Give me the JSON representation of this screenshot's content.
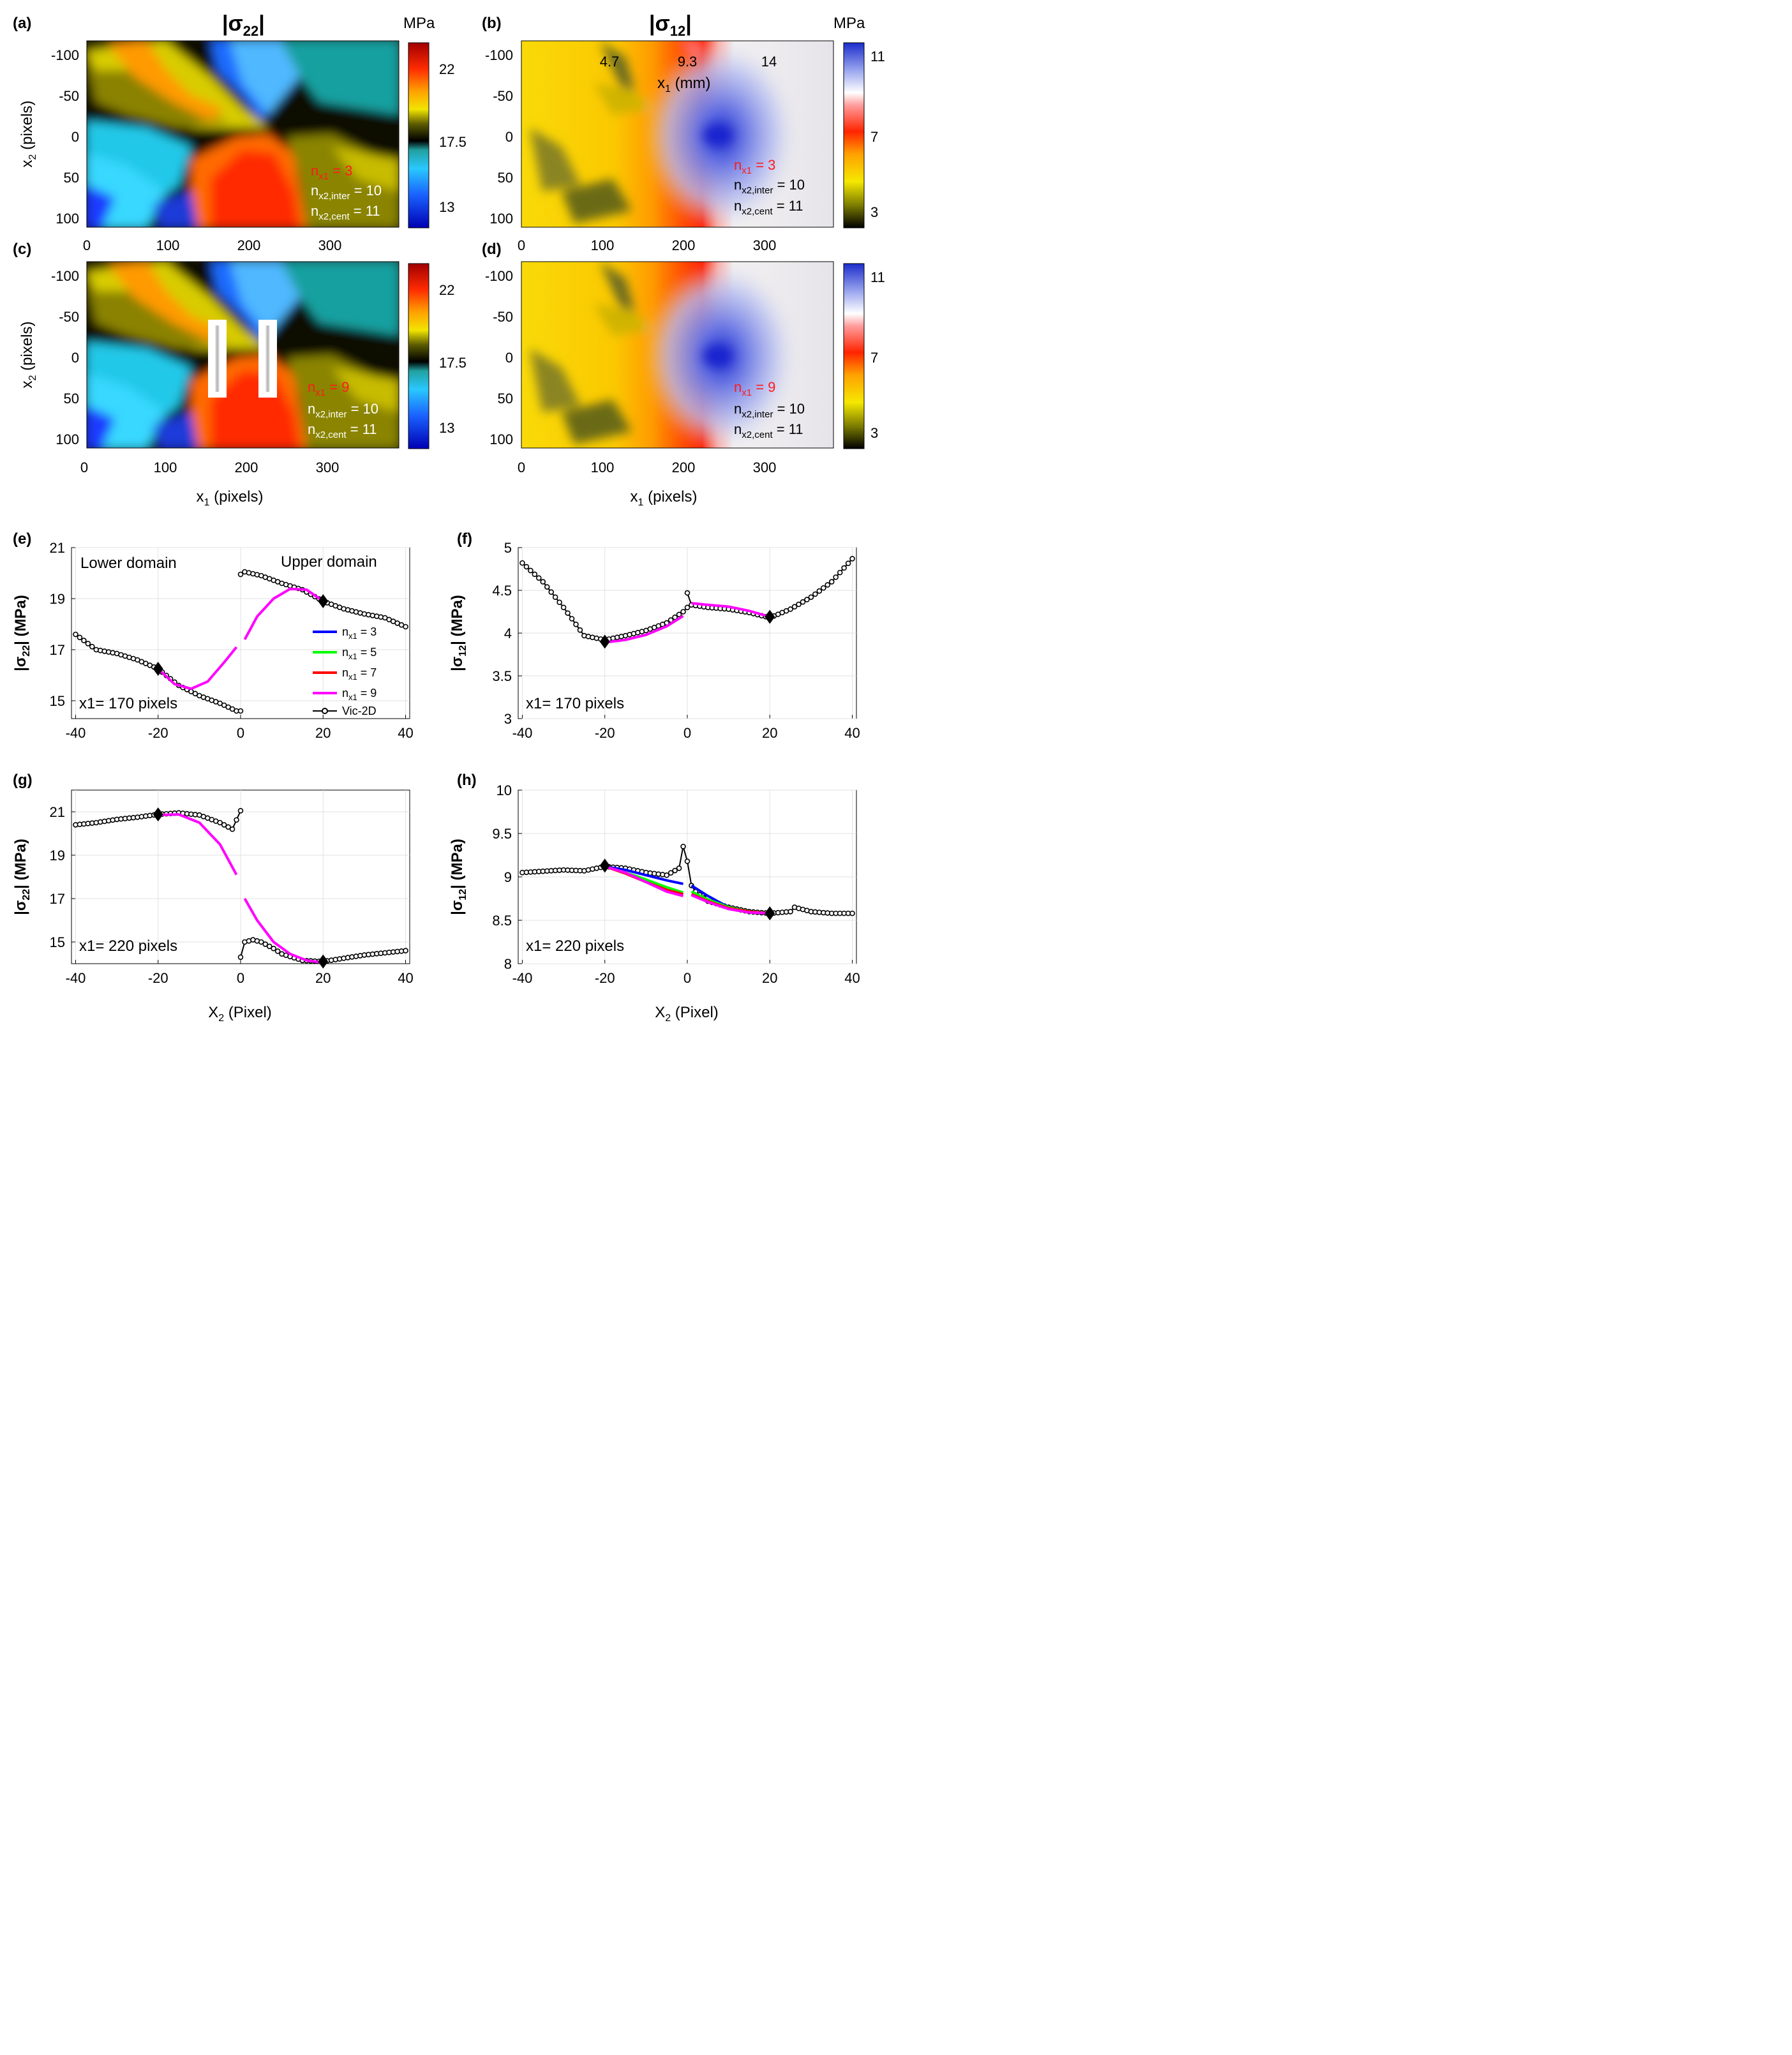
{
  "colorbar_ticks": {
    "s22": [
      "22",
      "17.5",
      "13"
    ],
    "s12": [
      "11",
      "7",
      "3"
    ]
  },
  "panels": [
    {
      "label": "(a)",
      "title": "|σ22|",
      "unit": "MPa",
      "nx1_text": "n",
      "nx1_sub": "x1",
      "nx1_val": " = 3",
      "inter_text": "n",
      "inter_sub": "x2,inter",
      "inter_val": " = 10",
      "cent_text": "n",
      "cent_sub": "x2,cent",
      "cent_val": " = 11"
    },
    {
      "label": "(b)",
      "title": "|σ12|",
      "unit": "MPa",
      "nx1_text": "n",
      "nx1_sub": "x1",
      "nx1_val": " = 3",
      "inter_text": "n",
      "inter_sub": "x2,inter",
      "inter_val": " = 10",
      "cent_text": "n",
      "cent_sub": "x2,cent",
      "cent_val": " = 11",
      "secondary_ticks": [
        "4.7",
        "9.3",
        "14"
      ],
      "secondary_label": "x",
      "secondary_sub": "1",
      "secondary_unit": " (mm)"
    },
    {
      "label": "(c)",
      "nx1_text": "n",
      "nx1_sub": "x1",
      "nx1_val": " = 9",
      "inter_text": "n",
      "inter_sub": "x2,inter",
      "inter_val": " = 10",
      "cent_text": "n",
      "cent_sub": "x2,cent",
      "cent_val": " = 11"
    },
    {
      "label": "(d)",
      "nx1_text": "n",
      "nx1_sub": "x1",
      "nx1_val": " = 9",
      "inter_text": "n",
      "inter_sub": "x2,inter",
      "inter_val": " = 10",
      "cent_text": "n",
      "cent_sub": "x2,cent",
      "cent_val": " = 11"
    }
  ],
  "map_axes": {
    "x_ticks": [
      "0",
      "100",
      "200",
      "300"
    ],
    "y_ticks": [
      "-100",
      "-50",
      "0",
      "50",
      "100"
    ],
    "ylabel": "x",
    "ylabel_sub": "2",
    "ylabel_unit": " (pixels)",
    "xlabel": "x",
    "xlabel_sub": "1",
    "xlabel_unit": " (pixels)"
  },
  "line_panels": [
    {
      "label": "(e)",
      "annotation": "x1= 170 pixels",
      "ylabel": "|σ22| (MPa)",
      "ylim": [
        14.3,
        21
      ],
      "yticks": [
        "15",
        "17",
        "19",
        "21"
      ],
      "extra": {
        "lower": "Lower domain",
        "upper": "Upper domain"
      }
    },
    {
      "label": "(f)",
      "annotation": "x1= 170 pixels",
      "ylabel": "|σ12| (MPa)",
      "ylim": [
        3,
        5
      ],
      "yticks": [
        "3",
        "3.5",
        "4",
        "4.5",
        "5"
      ]
    },
    {
      "label": "(g)",
      "annotation": "x1= 220 pixels",
      "ylabel": "|σ22| (MPa)",
      "ylim": [
        14,
        22
      ],
      "yticks": [
        "15",
        "17",
        "19",
        "21"
      ]
    },
    {
      "label": "(h)",
      "annotation": "x1= 220 pixels",
      "ylabel": "|σ12| (MPa)",
      "ylim": [
        8,
        10
      ],
      "yticks": [
        "8",
        "8.5",
        "9",
        "9.5",
        "10"
      ]
    }
  ],
  "line_axes": {
    "x_ticks": [
      "-40",
      "-20",
      "0",
      "20",
      "40"
    ],
    "xlabel": "X",
    "xlabel_sub": "2",
    "xlabel_unit": " (Pixel)"
  },
  "legend": [
    {
      "label": "n",
      "sub": "x1",
      "val": " = 3",
      "color": "#0000ff"
    },
    {
      "label": "n",
      "sub": "x1",
      "val": " = 5",
      "color": "#00ff00"
    },
    {
      "label": "n",
      "sub": "x1",
      "val": " = 7",
      "color": "#ff0000"
    },
    {
      "label": "n",
      "sub": "x1",
      "val": " = 9",
      "color": "#ff00ff"
    },
    {
      "label": "Vic-2D",
      "color": "#000000"
    }
  ],
  "chart_data": [
    {
      "type": "heatmap",
      "panel": "a",
      "title": "|σ22|",
      "unit": "MPa",
      "xlabel": "x1 (pixels)",
      "ylabel": "x2 (pixels)",
      "xlim": [
        0,
        385
      ],
      "ylim": [
        -115,
        112
      ],
      "clim": [
        12,
        23
      ],
      "note": "n_x1 = 3, n_x2,inter = 10, n_x2,cent = 11"
    },
    {
      "type": "heatmap",
      "panel": "b",
      "title": "|σ12|",
      "unit": "MPa",
      "xlabel": "x1 (pixels)",
      "ylabel": "x2 (pixels)",
      "xlim": [
        0,
        385
      ],
      "ylim": [
        -115,
        112
      ],
      "clim": [
        2.5,
        11.5
      ],
      "secondary_axis": {
        "label": "x1 (mm)",
        "ticks": [
          4.7,
          9.3,
          14
        ]
      },
      "note": "n_x1 = 3"
    },
    {
      "type": "heatmap",
      "panel": "c",
      "title": "|σ22|",
      "unit": "MPa",
      "xlim": [
        0,
        385
      ],
      "ylim": [
        -115,
        112
      ],
      "clim": [
        12,
        23
      ],
      "note": "n_x1 = 9"
    },
    {
      "type": "heatmap",
      "panel": "d",
      "title": "|σ12|",
      "unit": "MPa",
      "xlim": [
        0,
        385
      ],
      "ylim": [
        -115,
        112
      ],
      "clim": [
        2.5,
        11.5
      ],
      "note": "n_x1 = 9"
    },
    {
      "type": "line",
      "panel": "e",
      "xlabel": "X2 (Pixel)",
      "ylabel": "|σ22| (MPa)",
      "xlim": [
        -41,
        41
      ],
      "ylim": [
        14.3,
        21
      ],
      "series": [
        {
          "name": "Vic-2D",
          "x": [
            -40,
            -35,
            -30,
            -25,
            -20,
            -15,
            -10,
            -5,
            -1,
            0
          ],
          "y": [
            17.6,
            17.0,
            16.85,
            16.6,
            16.25,
            15.6,
            15.2,
            14.9,
            14.6,
            14.6
          ]
        },
        {
          "name": "Vic-2D",
          "x": [
            0,
            1,
            5,
            10,
            15,
            20,
            25,
            30,
            35,
            40
          ],
          "y": [
            19.95,
            20.05,
            19.9,
            19.6,
            19.35,
            18.9,
            18.6,
            18.4,
            18.25,
            17.9
          ]
        },
        {
          "name": "n_x1 = 9",
          "x": [
            -20,
            -16,
            -12,
            -8,
            -4,
            -1,
            1,
            4,
            8,
            12,
            16,
            20
          ],
          "y": [
            16.25,
            15.65,
            15.47,
            15.75,
            16.5,
            17.1,
            17.4,
            18.3,
            19.0,
            19.38,
            19.35,
            18.9
          ]
        },
        {
          "name": "markers",
          "x": [
            -20,
            20
          ],
          "y": [
            16.25,
            18.9
          ]
        }
      ]
    },
    {
      "type": "line",
      "panel": "f",
      "xlabel": "X2 (Pixel)",
      "ylabel": "|σ12| (MPa)",
      "xlim": [
        -41,
        41
      ],
      "ylim": [
        3,
        5
      ],
      "series": [
        {
          "name": "Vic-2D",
          "x": [
            -40,
            -35,
            -30,
            -25,
            -20,
            -15,
            -10,
            -5,
            -1,
            0
          ],
          "y": [
            4.82,
            4.6,
            4.3,
            3.97,
            3.92,
            3.97,
            4.03,
            4.12,
            4.25,
            4.3
          ]
        },
        {
          "name": "Vic-2D",
          "x": [
            0,
            1,
            5,
            10,
            15,
            20,
            25,
            30,
            35,
            40
          ],
          "y": [
            4.47,
            4.33,
            4.3,
            4.28,
            4.24,
            4.18,
            4.28,
            4.42,
            4.6,
            4.87
          ]
        },
        {
          "name": "n_x1 = 9",
          "x": [
            -20,
            -15,
            -10,
            -5,
            -1,
            1,
            5,
            10,
            15,
            20
          ],
          "y": [
            3.89,
            3.92,
            3.98,
            4.08,
            4.2,
            4.35,
            4.33,
            4.31,
            4.26,
            4.19
          ]
        },
        {
          "name": "markers",
          "x": [
            -20,
            20
          ],
          "y": [
            3.9,
            4.19
          ]
        }
      ]
    },
    {
      "type": "line",
      "panel": "g",
      "xlabel": "X2 (Pixel)",
      "ylabel": "|σ22| (MPa)",
      "xlim": [
        -41,
        41
      ],
      "ylim": [
        14,
        22
      ],
      "series": [
        {
          "name": "Vic-2D",
          "x": [
            -40,
            -35,
            -30,
            -25,
            -20,
            -15,
            -10,
            -5,
            -2,
            0
          ],
          "y": [
            20.4,
            20.5,
            20.65,
            20.75,
            20.88,
            20.95,
            20.85,
            20.5,
            20.2,
            21.05
          ]
        },
        {
          "name": "Vic-2D",
          "x": [
            0,
            1,
            3,
            5,
            8,
            10,
            15,
            20,
            25,
            30,
            35,
            40
          ],
          "y": [
            14.3,
            15.0,
            15.1,
            15.0,
            14.7,
            14.45,
            14.15,
            14.1,
            14.25,
            14.4,
            14.5,
            14.6
          ]
        },
        {
          "name": "n_x1 = 9",
          "x": [
            -20,
            -15,
            -10,
            -5,
            -1,
            1,
            4,
            8,
            12,
            16,
            20
          ],
          "y": [
            20.85,
            20.88,
            20.5,
            19.5,
            18.1,
            17.0,
            16.0,
            15.0,
            14.45,
            14.15,
            14.05
          ]
        },
        {
          "name": "markers",
          "x": [
            -20,
            20
          ],
          "y": [
            20.88,
            14.1
          ]
        }
      ]
    },
    {
      "type": "line",
      "panel": "h",
      "xlabel": "X2 (Pixel)",
      "ylabel": "|σ12| (MPa)",
      "xlim": [
        -41,
        41
      ],
      "ylim": [
        8,
        10
      ],
      "series": [
        {
          "name": "Vic-2D",
          "x": [
            -40,
            -30,
            -25,
            -20,
            -15,
            -10,
            -5,
            -2,
            -1,
            0,
            1,
            2,
            5,
            10,
            15,
            20,
            25,
            26,
            30,
            35,
            40
          ],
          "y": [
            9.05,
            9.08,
            9.07,
            9.12,
            9.1,
            9.05,
            9.02,
            9.1,
            9.35,
            9.18,
            8.9,
            8.83,
            8.72,
            8.65,
            8.6,
            8.58,
            8.6,
            8.65,
            8.6,
            8.58,
            8.58
          ]
        },
        {
          "name": "n_x1 = 3",
          "x": [
            -20,
            -15,
            -10,
            -5,
            -1,
            1,
            5,
            10,
            15,
            20
          ],
          "y": [
            9.12,
            9.08,
            9.02,
            8.96,
            8.92,
            8.9,
            8.78,
            8.65,
            8.6,
            8.58
          ]
        },
        {
          "name": "n_x1 = 5",
          "x": [
            -20,
            -15,
            -10,
            -5,
            -1,
            1,
            5,
            10,
            15,
            20
          ],
          "y": [
            9.12,
            9.05,
            8.97,
            8.88,
            8.82,
            8.83,
            8.74,
            8.65,
            8.6,
            8.58
          ]
        },
        {
          "name": "n_x1 = 7",
          "x": [
            -20,
            -15,
            -10,
            -5,
            -1,
            1,
            5,
            10,
            15,
            20
          ],
          "y": [
            9.12,
            9.04,
            8.94,
            8.85,
            8.8,
            8.8,
            8.72,
            8.64,
            8.6,
            8.58
          ]
        },
        {
          "name": "n_x1 = 9",
          "x": [
            -20,
            -15,
            -10,
            -5,
            -1,
            1,
            5,
            10,
            15,
            20
          ],
          "y": [
            9.12,
            9.05,
            8.94,
            8.83,
            8.78,
            8.79,
            8.71,
            8.63,
            8.59,
            8.58
          ]
        },
        {
          "name": "markers",
          "x": [
            -20,
            20
          ],
          "y": [
            9.13,
            8.58
          ]
        }
      ]
    }
  ]
}
